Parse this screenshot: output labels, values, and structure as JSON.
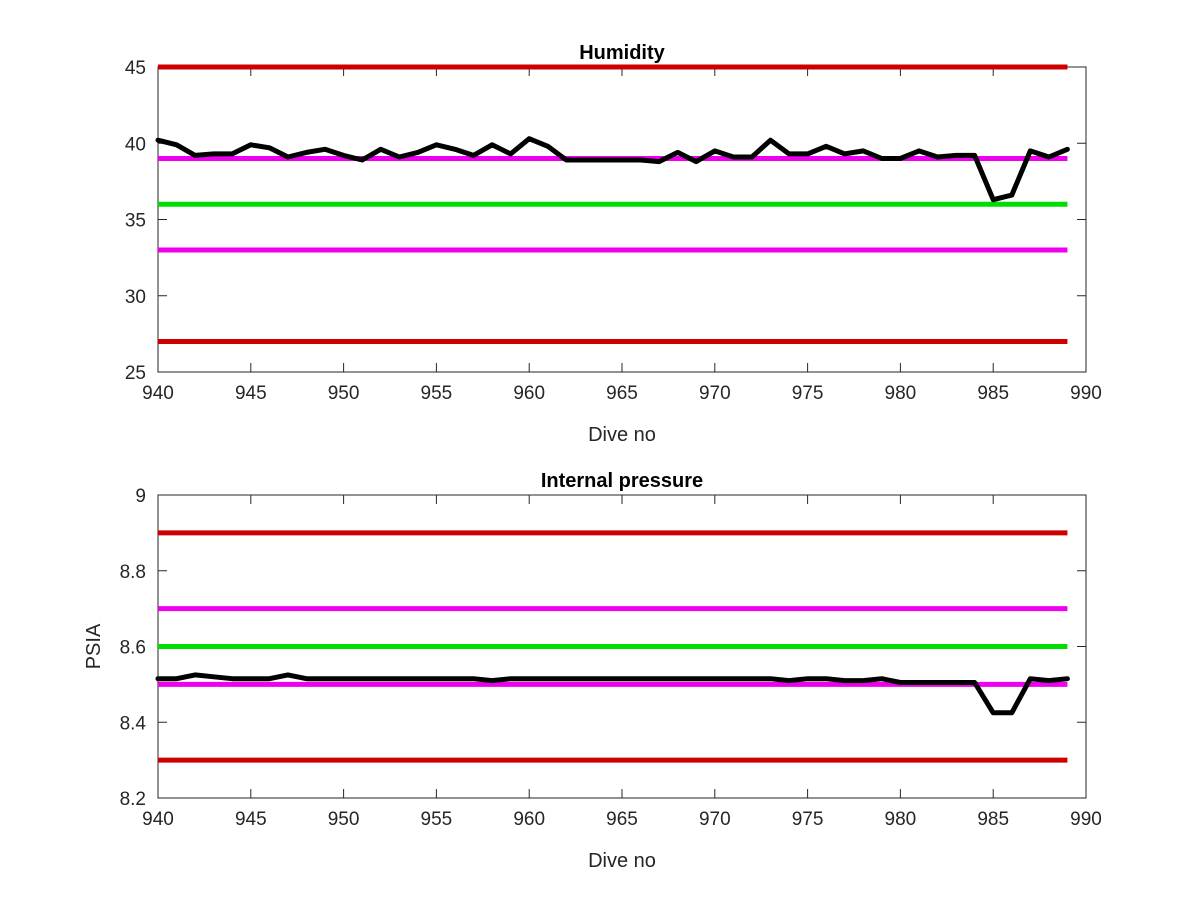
{
  "chart_data": [
    {
      "type": "line",
      "title": "Humidity",
      "xlabel": "Dive no",
      "ylabel": "",
      "xlim": [
        940,
        990
      ],
      "ylim": [
        25,
        45
      ],
      "xticks": [
        940,
        945,
        950,
        955,
        960,
        965,
        970,
        975,
        980,
        985,
        990
      ],
      "yticks": [
        25,
        30,
        35,
        40,
        45
      ],
      "tick_labels_x": [
        "940",
        "945",
        "950",
        "955",
        "960",
        "965",
        "970",
        "975",
        "980",
        "985",
        "990"
      ],
      "tick_labels_y": [
        "25",
        "30",
        "35",
        "40",
        "45"
      ],
      "grid": false,
      "legend": "none",
      "threshold_lines": [
        {
          "y": 45,
          "color": "#cc0000"
        },
        {
          "y": 39,
          "color": "#ee00ee"
        },
        {
          "y": 36,
          "color": "#00dd00"
        },
        {
          "y": 33,
          "color": "#ee00ee"
        },
        {
          "y": 27,
          "color": "#cc0000"
        }
      ],
      "series": [
        {
          "color": "#000000",
          "x": [
            940,
            941,
            942,
            943,
            944,
            945,
            946,
            947,
            948,
            949,
            950,
            951,
            952,
            953,
            954,
            955,
            956,
            957,
            958,
            959,
            960,
            961,
            962,
            963,
            964,
            965,
            966,
            967,
            968,
            969,
            970,
            971,
            972,
            973,
            974,
            975,
            976,
            977,
            978,
            979,
            980,
            981,
            982,
            983,
            984,
            985,
            986,
            987,
            988,
            989
          ],
          "values": [
            40.2,
            39.9,
            39.2,
            39.3,
            39.3,
            39.9,
            39.7,
            39.1,
            39.4,
            39.6,
            39.2,
            38.9,
            39.6,
            39.1,
            39.4,
            39.9,
            39.6,
            39.2,
            39.9,
            39.3,
            40.3,
            39.8,
            38.9,
            38.9,
            38.9,
            38.9,
            38.9,
            38.8,
            39.4,
            38.8,
            39.5,
            39.1,
            39.1,
            40.2,
            39.3,
            39.3,
            39.8,
            39.3,
            39.5,
            39.0,
            39.0,
            39.5,
            39.1,
            39.2,
            39.2,
            36.3,
            36.6,
            39.5,
            39.1,
            39.6
          ]
        }
      ]
    },
    {
      "type": "line",
      "title": "Internal pressure",
      "xlabel": "Dive no",
      "ylabel": "PSIA",
      "xlim": [
        940,
        990
      ],
      "ylim": [
        8.2,
        9.0
      ],
      "xticks": [
        940,
        945,
        950,
        955,
        960,
        965,
        970,
        975,
        980,
        985,
        990
      ],
      "yticks": [
        8.2,
        8.4,
        8.6,
        8.8,
        9.0
      ],
      "tick_labels_x": [
        "940",
        "945",
        "950",
        "955",
        "960",
        "965",
        "970",
        "975",
        "980",
        "985",
        "990"
      ],
      "tick_labels_y": [
        "8.2",
        "8.4",
        "8.6",
        "8.8",
        "9"
      ],
      "grid": false,
      "legend": "none",
      "threshold_lines": [
        {
          "y": 8.9,
          "color": "#cc0000"
        },
        {
          "y": 8.7,
          "color": "#ee00ee"
        },
        {
          "y": 8.6,
          "color": "#00dd00"
        },
        {
          "y": 8.5,
          "color": "#ee00ee"
        },
        {
          "y": 8.3,
          "color": "#cc0000"
        }
      ],
      "series": [
        {
          "color": "#000000",
          "x": [
            940,
            941,
            942,
            943,
            944,
            945,
            946,
            947,
            948,
            949,
            950,
            951,
            952,
            953,
            954,
            955,
            956,
            957,
            958,
            959,
            960,
            961,
            962,
            963,
            964,
            965,
            966,
            967,
            968,
            969,
            970,
            971,
            972,
            973,
            974,
            975,
            976,
            977,
            978,
            979,
            980,
            981,
            982,
            983,
            984,
            985,
            986,
            987,
            988,
            989
          ],
          "values": [
            8.515,
            8.515,
            8.525,
            8.52,
            8.515,
            8.515,
            8.515,
            8.525,
            8.515,
            8.515,
            8.515,
            8.515,
            8.515,
            8.515,
            8.515,
            8.515,
            8.515,
            8.515,
            8.51,
            8.515,
            8.515,
            8.515,
            8.515,
            8.515,
            8.515,
            8.515,
            8.515,
            8.515,
            8.515,
            8.515,
            8.515,
            8.515,
            8.515,
            8.515,
            8.51,
            8.515,
            8.515,
            8.51,
            8.51,
            8.515,
            8.505,
            8.505,
            8.505,
            8.505,
            8.505,
            8.425,
            8.425,
            8.515,
            8.51,
            8.515
          ]
        }
      ]
    }
  ]
}
